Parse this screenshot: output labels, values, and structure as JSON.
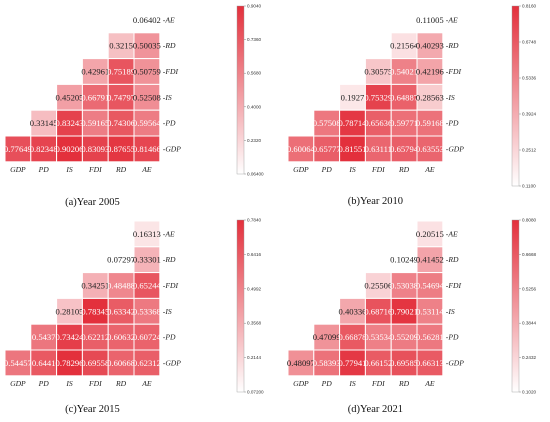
{
  "chart_data": [
    {
      "type": "heatmap",
      "caption": "(a)Year 2005",
      "variables": [
        "GDP",
        "PD",
        "IS",
        "FDI",
        "RD",
        "AE"
      ],
      "colorbar": {
        "min": 0.064,
        "max": 0.904,
        "ticks": [
          "0.9040",
          "0.7360",
          "0.5680",
          "0.4000",
          "0.2320",
          "0.06400"
        ]
      },
      "rows": [
        {
          "label": "AE",
          "values": [
            null,
            null,
            null,
            null,
            null,
            "0.06402"
          ]
        },
        {
          "label": "RD",
          "values": [
            null,
            null,
            null,
            null,
            "0.3215",
            "0.50035"
          ]
        },
        {
          "label": "FDI",
          "values": [
            null,
            null,
            null,
            "0.42961",
            "0.75189",
            "0.50759"
          ]
        },
        {
          "label": "IS",
          "values": [
            null,
            null,
            "0.45205",
            "0.66791",
            "0.74797",
            "0.52508"
          ]
        },
        {
          "label": "PD",
          "values": [
            null,
            "0.33145",
            "0.83243",
            "0.59165",
            "0.74306",
            "0.59564"
          ]
        },
        {
          "label": "GDP",
          "values": [
            "0.77649",
            "0.82348",
            "0.90206",
            "0.83093",
            "0.87655",
            "0.81466"
          ]
        }
      ]
    },
    {
      "type": "heatmap",
      "caption": "(b)Year 2010",
      "variables": [
        "GDP",
        "PD",
        "IS",
        "FDI",
        "RD",
        "AE"
      ],
      "colorbar": {
        "min": 0.11,
        "max": 0.816,
        "ticks": [
          "0.8160",
          "0.6748",
          "0.5336",
          "0.3924",
          "0.2512",
          "0.1100"
        ]
      },
      "rows": [
        {
          "label": "AE",
          "values": [
            null,
            null,
            null,
            null,
            null,
            "0.11005"
          ]
        },
        {
          "label": "RD",
          "values": [
            null,
            null,
            null,
            null,
            "0.21564",
            "0.40293"
          ]
        },
        {
          "label": "FDI",
          "values": [
            null,
            null,
            null,
            "0.30575",
            "0.54021",
            "0.42196"
          ]
        },
        {
          "label": "IS",
          "values": [
            null,
            null,
            "0.1927",
            "0.75329",
            "0.64887",
            "0.28563"
          ]
        },
        {
          "label": "PD",
          "values": [
            null,
            "0.57508",
            "0.78714",
            "0.65636",
            "0.59771",
            "0.59168"
          ]
        },
        {
          "label": "GDP",
          "values": [
            "0.60064",
            "0.65777",
            "0.81551",
            "0.63111",
            "0.65794",
            "0.63553"
          ]
        }
      ]
    },
    {
      "type": "heatmap",
      "caption": "(c)Year 2015",
      "variables": [
        "GDP",
        "PD",
        "IS",
        "FDI",
        "RD",
        "AE"
      ],
      "colorbar": {
        "min": 0.072,
        "max": 0.784,
        "ticks": [
          "0.7840",
          "0.6416",
          "0.4992",
          "0.3568",
          "0.2144",
          "0.07200"
        ]
      },
      "rows": [
        {
          "label": "AE",
          "values": [
            null,
            null,
            null,
            null,
            null,
            "0.16313"
          ]
        },
        {
          "label": "RD",
          "values": [
            null,
            null,
            null,
            null,
            "0.07297",
            "0.33301"
          ]
        },
        {
          "label": "FDI",
          "values": [
            null,
            null,
            null,
            "0.34251",
            "0.48488",
            "0.65244"
          ]
        },
        {
          "label": "IS",
          "values": [
            null,
            null,
            "0.28105",
            "0.78345",
            "0.63342",
            "0.53368"
          ]
        },
        {
          "label": "PD",
          "values": [
            null,
            "0.5437",
            "0.73424",
            "0.62212",
            "0.60632",
            "0.60724"
          ]
        },
        {
          "label": "GDP",
          "values": [
            "0.54457",
            "0.6441",
            "0.78296",
            "0.69558",
            "0.60668",
            "0.62312"
          ]
        }
      ]
    },
    {
      "type": "heatmap",
      "caption": "(d)Year 2021",
      "variables": [
        "GDP",
        "PD",
        "IS",
        "FDI",
        "RD",
        "AE"
      ],
      "colorbar": {
        "min": 0.102,
        "max": 0.808,
        "ticks": [
          "0.8080",
          "0.6668",
          "0.5256",
          "0.3844",
          "0.2432",
          "0.1020"
        ]
      },
      "rows": [
        {
          "label": "AE",
          "values": [
            null,
            null,
            null,
            null,
            null,
            "0.20515"
          ]
        },
        {
          "label": "RD",
          "values": [
            null,
            null,
            null,
            null,
            "0.10249",
            "0.41452"
          ]
        },
        {
          "label": "FDI",
          "values": [
            null,
            null,
            null,
            "0.25506",
            "0.53038",
            "0.54694"
          ]
        },
        {
          "label": "IS",
          "values": [
            null,
            null,
            "0.40336",
            "0.68716",
            "0.79021",
            "0.53114"
          ]
        },
        {
          "label": "PD",
          "values": [
            null,
            "0.47099",
            "0.66878",
            "0.53534",
            "0.55209",
            "0.56281"
          ]
        },
        {
          "label": "GDP",
          "values": [
            "0.48097",
            "0.58393",
            "0.77941",
            "0.66152",
            "0.69585",
            "0.66313"
          ]
        }
      ]
    }
  ],
  "colors": {
    "low": "#ffffff",
    "high": "#e3303c",
    "grid": "#ffffff",
    "text_dark": "#222222",
    "text_light": "#ffffff"
  }
}
